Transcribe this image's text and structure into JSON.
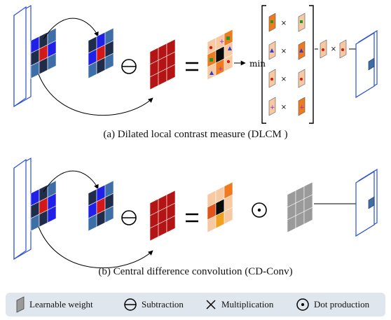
{
  "panel_a": {
    "min_label": "min",
    "times_symbol": "×",
    "caption": "(a) Dilated local contrast measure (DLCM )"
  },
  "panel_b": {
    "caption": "(b) Central difference convolution (CD-Conv)"
  },
  "legend": {
    "learnable_weight": "Learnable weight",
    "subtraction": "Subtraction",
    "multiplication": "Multiplication",
    "dot_production": "Dot production"
  },
  "colors": {
    "frame_blue": "#2a4fd6",
    "dark_navy": "#1f2d4a",
    "steel_blue": "#3d6ea8",
    "bright_blue": "#2020e8",
    "red": "#d41818",
    "dark_red": "#9e1010",
    "orange": "#f07a1e",
    "peach": "#f6c9a3",
    "grey": "#9a9a9a",
    "legend_bg": "#dfe6ee"
  }
}
